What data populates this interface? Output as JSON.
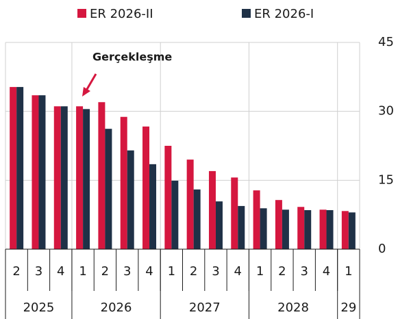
{
  "chart_data": {
    "type": "bar",
    "category_groups": [
      {
        "label": "2025",
        "categories": [
          "2",
          "3",
          "4"
        ]
      },
      {
        "label": "2026",
        "categories": [
          "1",
          "2",
          "3",
          "4"
        ]
      },
      {
        "label": "2027",
        "categories": [
          "1",
          "2",
          "3",
          "4"
        ]
      },
      {
        "label": "2028",
        "categories": [
          "1",
          "2",
          "3",
          "4"
        ]
      },
      {
        "label": "29",
        "categories": [
          "1"
        ]
      }
    ],
    "series": [
      {
        "name": "ER 2026-II",
        "color": "#d5173f",
        "values": [
          35.3,
          33.5,
          31.1,
          31.1,
          32.0,
          28.8,
          26.7,
          22.5,
          19.5,
          17.0,
          15.6,
          12.8,
          10.7,
          9.2,
          8.6,
          8.3
        ]
      },
      {
        "name": "ER 2026-I",
        "color": "#1f3147",
        "values": [
          35.3,
          33.5,
          31.1,
          30.5,
          26.2,
          21.5,
          18.5,
          14.9,
          13.0,
          10.4,
          9.4,
          8.9,
          8.6,
          8.5,
          8.5,
          8.0
        ]
      }
    ],
    "annotation": {
      "text": "Gerçekleşme",
      "color": "#d5173f"
    },
    "ylim": [
      0,
      45
    ],
    "yticks": [
      0,
      15,
      30,
      45
    ],
    "grid": true,
    "y_axis_side": "right",
    "legend": "top"
  }
}
